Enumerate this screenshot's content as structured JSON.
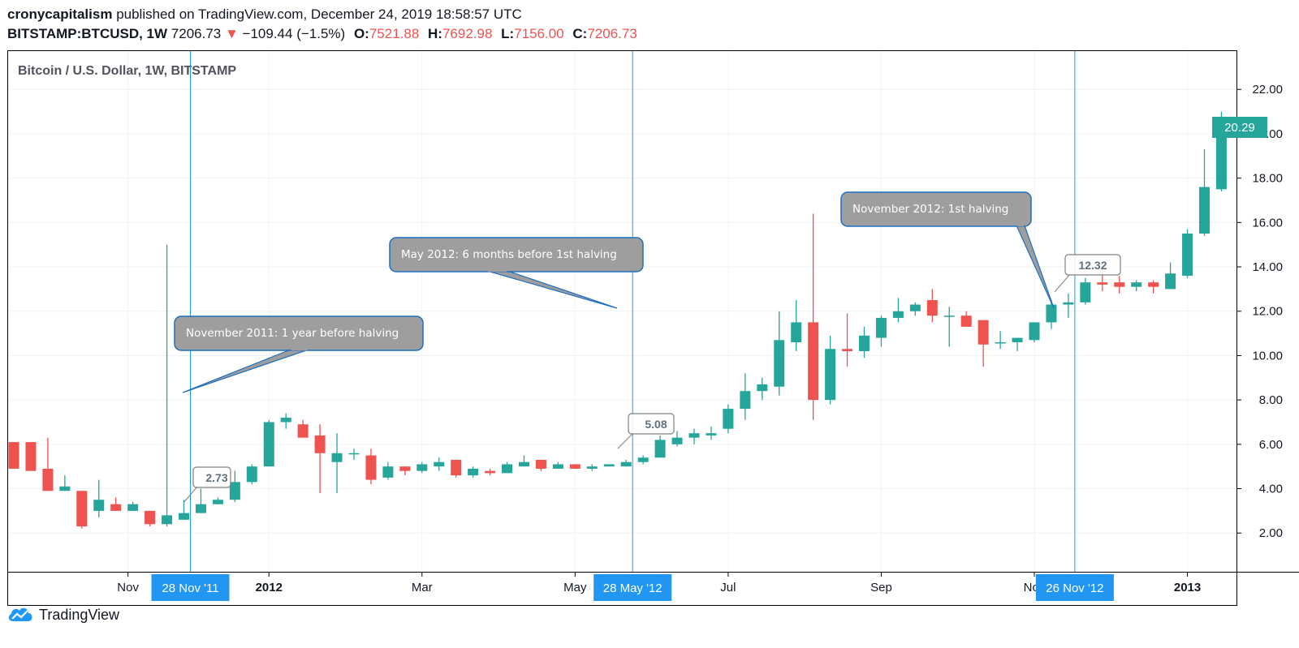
{
  "header": {
    "author": "cronycapitalism",
    "published": "published on TradingView.com, December 24, 2019 18:58:57 UTC",
    "symbol": "BITSTAMP:BTCUSD, 1W",
    "price": "7206.73",
    "change_arrow": "▼",
    "change": "−109.44 (−1.5%)",
    "o_label": "O:",
    "o_value": "7521.88",
    "h_label": "H:",
    "h_value": "7692.98",
    "l_label": "L:",
    "l_value": "7156.00",
    "c_label": "C:",
    "c_value": "7206.73"
  },
  "footer": {
    "brand": "TradingView"
  },
  "chart_data": {
    "type": "candlestick",
    "title": "Bitcoin / U.S. Dollar, 1W, BITSTAMP",
    "x_labels": [
      "Nov",
      "2012",
      "Mar",
      "May",
      "Jul",
      "Sep",
      "Nov",
      "2013"
    ],
    "y_ticks": [
      "2.00",
      "4.00",
      "6.00",
      "8.00",
      "10.00",
      "12.00",
      "14.00",
      "16.00",
      "18.00",
      "20.00",
      "22.00"
    ],
    "ylim": [
      0.4,
      23.3
    ],
    "grid": true,
    "last_price": "20.29",
    "colors": {
      "up": "#26a69a",
      "down": "#ef5350",
      "marker": "#2196f3",
      "callout": "#9e9e9e"
    },
    "candles": [
      [
        6.1,
        6.1,
        4.9,
        4.9
      ],
      [
        6.1,
        6.1,
        4.8,
        4.8
      ],
      [
        4.9,
        6.3,
        3.9,
        3.9
      ],
      [
        3.9,
        4.6,
        4.0,
        4.1
      ],
      [
        3.9,
        3.9,
        2.2,
        2.3
      ],
      [
        3.0,
        4.4,
        2.7,
        3.5
      ],
      [
        3.3,
        3.6,
        3.0,
        3.0
      ],
      [
        3.0,
        3.4,
        3.0,
        3.3
      ],
      [
        3.0,
        3.0,
        2.3,
        2.4
      ],
      [
        2.4,
        15.0,
        2.3,
        2.8
      ],
      [
        2.6,
        3.5,
        2.6,
        2.9
      ],
      [
        2.9,
        4.0,
        2.9,
        3.3
      ],
      [
        3.3,
        3.6,
        3.3,
        3.5
      ],
      [
        3.5,
        4.8,
        3.4,
        4.3
      ],
      [
        4.3,
        5.1,
        4.2,
        5.0
      ],
      [
        5.0,
        7.1,
        5.0,
        7.0
      ],
      [
        7.0,
        7.4,
        6.7,
        7.2
      ],
      [
        6.9,
        7.1,
        6.3,
        6.3
      ],
      [
        6.4,
        6.9,
        3.8,
        5.6
      ],
      [
        5.2,
        6.5,
        3.8,
        5.6
      ],
      [
        5.6,
        5.8,
        5.3,
        5.6
      ],
      [
        5.5,
        5.8,
        4.2,
        4.4
      ],
      [
        4.5,
        5.2,
        4.4,
        5.0
      ],
      [
        5.0,
        5.0,
        4.6,
        4.8
      ],
      [
        4.8,
        5.2,
        4.7,
        5.1
      ],
      [
        5.0,
        5.4,
        4.8,
        5.2
      ],
      [
        5.3,
        5.3,
        4.5,
        4.6
      ],
      [
        4.6,
        5.0,
        4.5,
        4.9
      ],
      [
        4.8,
        4.9,
        4.6,
        4.7
      ],
      [
        4.7,
        5.2,
        4.7,
        5.1
      ],
      [
        5.0,
        5.5,
        5.0,
        5.2
      ],
      [
        5.3,
        5.3,
        4.8,
        4.9
      ],
      [
        4.9,
        5.2,
        4.9,
        5.1
      ],
      [
        5.1,
        5.1,
        4.9,
        4.9
      ],
      [
        4.9,
        5.1,
        4.8,
        5.0
      ],
      [
        5.0,
        5.1,
        5.0,
        5.1
      ],
      [
        5.0,
        5.3,
        5.0,
        5.2
      ],
      [
        5.2,
        5.5,
        5.1,
        5.4
      ],
      [
        5.4,
        6.4,
        5.4,
        6.2
      ],
      [
        6.0,
        6.6,
        5.9,
        6.3
      ],
      [
        6.3,
        6.7,
        6.0,
        6.5
      ],
      [
        6.4,
        6.8,
        6.2,
        6.5
      ],
      [
        6.7,
        7.8,
        6.5,
        7.6
      ],
      [
        7.6,
        9.2,
        7.1,
        8.4
      ],
      [
        8.4,
        9.0,
        8.0,
        8.7
      ],
      [
        8.6,
        12.0,
        8.2,
        10.7
      ],
      [
        10.6,
        12.5,
        10.2,
        11.5
      ],
      [
        11.5,
        16.4,
        7.1,
        8.0
      ],
      [
        8.0,
        10.9,
        7.8,
        10.3
      ],
      [
        10.3,
        11.9,
        9.5,
        10.2
      ],
      [
        10.2,
        11.3,
        9.9,
        10.9
      ],
      [
        10.8,
        11.8,
        10.4,
        11.7
      ],
      [
        11.7,
        12.6,
        11.5,
        12.0
      ],
      [
        12.0,
        12.4,
        11.8,
        12.3
      ],
      [
        12.5,
        13.0,
        11.5,
        11.8
      ],
      [
        11.8,
        12.2,
        10.4,
        11.8
      ],
      [
        11.8,
        12.0,
        11.3,
        11.3
      ],
      [
        11.6,
        11.6,
        9.5,
        10.5
      ],
      [
        10.6,
        11.1,
        10.3,
        10.6
      ],
      [
        10.6,
        10.8,
        10.2,
        10.8
      ],
      [
        10.7,
        11.5,
        10.6,
        11.5
      ],
      [
        11.5,
        12.5,
        11.2,
        12.3
      ],
      [
        12.3,
        12.8,
        11.7,
        12.4
      ],
      [
        12.4,
        13.5,
        12.3,
        13.3
      ],
      [
        13.3,
        13.9,
        12.9,
        13.2
      ],
      [
        13.3,
        13.6,
        12.8,
        13.1
      ],
      [
        13.1,
        13.4,
        12.9,
        13.3
      ],
      [
        13.3,
        13.4,
        12.8,
        13.1
      ],
      [
        13.0,
        14.2,
        13.0,
        13.7
      ],
      [
        13.6,
        15.7,
        13.5,
        15.5
      ],
      [
        15.5,
        19.3,
        15.4,
        17.6
      ],
      [
        17.5,
        21.0,
        17.4,
        20.3
      ]
    ],
    "markers": [
      {
        "date": "28 Nov '11",
        "index": 10,
        "price_label": "2.73"
      },
      {
        "date": "28 May '12",
        "index": 36,
        "price_label": "5.08"
      },
      {
        "date": "26 Nov '12",
        "index": 62,
        "price_label": "12.32"
      }
    ],
    "annotations": [
      "November 2011: 1 year before halving",
      "May 2012: 6 months before 1st halving",
      "November 2012: 1st halving"
    ]
  }
}
